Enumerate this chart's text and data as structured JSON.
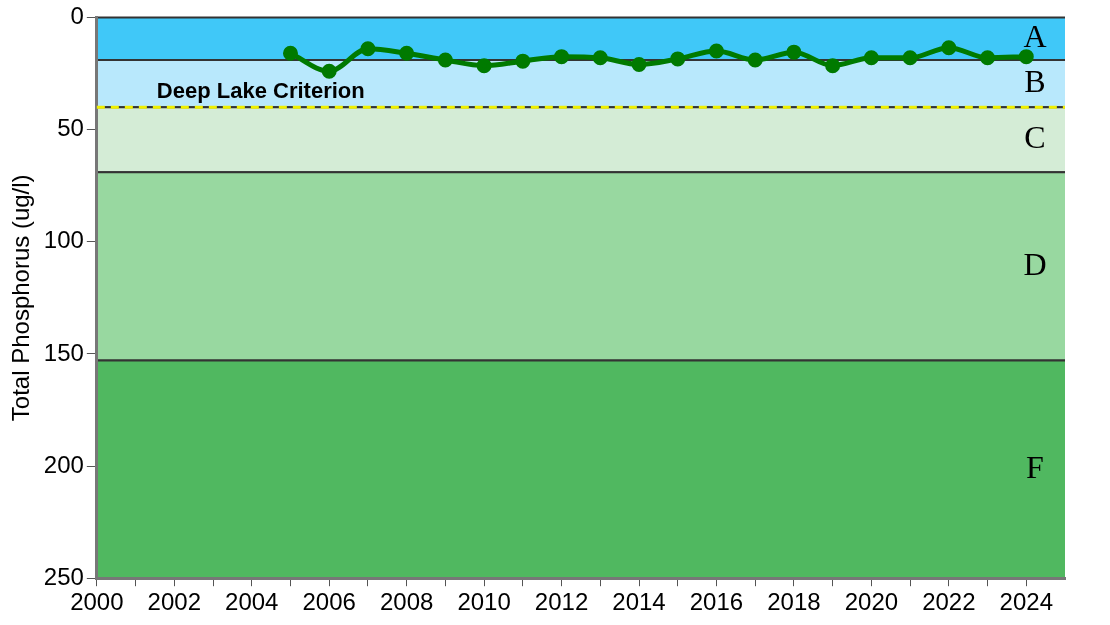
{
  "chart_data": {
    "type": "line",
    "ylabel": "Total Phosphorus (ug/l)",
    "x": [
      2005,
      2006,
      2007,
      2008,
      2009,
      2010,
      2011,
      2012,
      2013,
      2014,
      2015,
      2016,
      2017,
      2018,
      2019,
      2020,
      2021,
      2022,
      2023,
      2024
    ],
    "series": [
      {
        "color": "#007a00",
        "values": [
          16,
          24,
          14,
          16,
          19,
          21.5,
          19.5,
          17.5,
          18,
          21,
          18.5,
          15,
          19,
          15.5,
          21.5,
          18,
          18,
          13.5,
          18,
          17.5
        ]
      }
    ],
    "xlim": [
      2000,
      2025
    ],
    "xticks": [
      2000,
      {
        "value": 2001,
        "label": null
      },
      2002,
      {
        "value": 2003,
        "label": null
      },
      2004,
      {
        "value": 2005,
        "label": null
      },
      2006,
      {
        "value": 2007,
        "label": null
      },
      2008,
      {
        "value": 2009,
        "label": null
      },
      2010,
      {
        "value": 2011,
        "label": null
      },
      2012,
      {
        "value": 2013,
        "label": null
      },
      2014,
      {
        "value": 2015,
        "label": null
      },
      2016,
      {
        "value": 2017,
        "label": null
      },
      2018,
      {
        "value": 2019,
        "label": null
      },
      2020,
      {
        "value": 2021,
        "label": null
      },
      2022,
      {
        "value": 2023,
        "label": null
      },
      2024
    ],
    "ylim": [
      250,
      0
    ],
    "yticks": [
      0,
      50,
      100,
      150,
      200,
      250
    ],
    "bands": [
      {
        "axis": "y",
        "from": 0,
        "to": 19,
        "label": "A",
        "color": "#40c8f8"
      },
      {
        "axis": "y",
        "from": 19,
        "to": 40,
        "label": "B",
        "color": "#b8e8fc"
      },
      {
        "axis": "y",
        "from": 40,
        "to": 69,
        "label": "C",
        "color": "#d4ecd6"
      },
      {
        "axis": "y",
        "from": 69,
        "to": 153,
        "label": "D",
        "color": "#98d8a0"
      },
      {
        "axis": "y",
        "from": 153,
        "to": 250,
        "label": "F",
        "color": "#50b860"
      }
    ],
    "ref_lines": [
      {
        "axis": "y",
        "value": 40,
        "label": "Deep Lake Criterion",
        "color": "#f0f000",
        "line_style": "dashed"
      }
    ],
    "marker": "circle",
    "line_style": "solid",
    "grid": false,
    "legend": false
  }
}
